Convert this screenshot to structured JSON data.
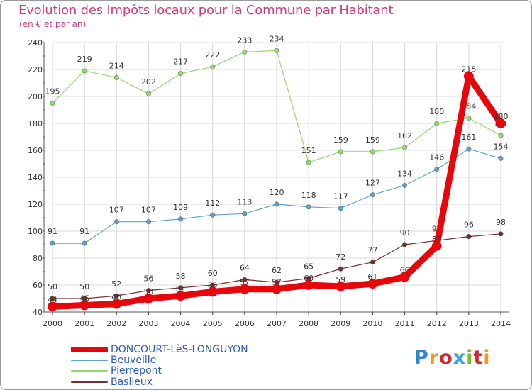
{
  "header": {
    "title": "Evolution des Impôts locaux pour la Commune par Habitant",
    "subtitle": "(en € et par an)"
  },
  "colors": {
    "title": "#d23a7a",
    "axis": "#555555",
    "grid": "#d8d8d8",
    "tick_minor": "#d23a7a"
  },
  "logo": {
    "text": "Proxiti",
    "letter_colors": [
      "#2f86c8",
      "#f29a1a",
      "#d8262e",
      "#3aa0d8",
      "#7ab82e",
      "#d8262e",
      "#f29a1a"
    ]
  },
  "chart_data": {
    "type": "line",
    "title": "Evolution des Impôts locaux pour la Commune par Habitant",
    "subtitle": "(en € et par an)",
    "categories": [
      "2000",
      "2001",
      "2002",
      "2003",
      "2004",
      "2005",
      "2006",
      "2007",
      "2008",
      "2009",
      "2010",
      "2011",
      "2012",
      "2013",
      "2014"
    ],
    "ylim": [
      40,
      240
    ],
    "yticks": [
      "40",
      "60",
      "80",
      "100",
      "120",
      "140",
      "160",
      "180",
      "200",
      "220",
      "240"
    ],
    "grid": true,
    "legend_position": "bottom-left",
    "series": [
      {
        "name": "DONCOURT-LèS-LONGUYON",
        "color": "#e8060b",
        "label_color": "#2a57c8",
        "values": [
          44,
          45,
          46,
          50,
          52,
          55,
          57,
          57,
          60,
          59,
          61,
          66,
          89,
          215,
          180
        ],
        "labels": [
          "44",
          "45",
          "46",
          "50",
          "52",
          "55",
          "57",
          "57",
          "60",
          "59",
          "61",
          "66",
          "89",
          "215",
          "180"
        ]
      },
      {
        "name": "Beuveille",
        "color": "#5ea2d5",
        "label_color": "#2a57c8",
        "values": [
          91,
          91,
          107,
          107,
          109,
          112,
          113,
          120,
          118,
          117,
          127,
          134,
          146,
          161,
          154
        ],
        "labels": [
          "91",
          "91",
          "107",
          "107",
          "109",
          "112",
          "113",
          "120",
          "118",
          "117",
          "127",
          "134",
          "146",
          "161",
          "154"
        ]
      },
      {
        "name": "Pierrepont",
        "color": "#8fdc6a",
        "label_color": "#2a57c8",
        "values": [
          195,
          219,
          214,
          202,
          217,
          222,
          233,
          234,
          151,
          159,
          159,
          162,
          180,
          184,
          171
        ],
        "labels": [
          "195",
          "219",
          "214",
          "202",
          "217",
          "222",
          "233",
          "234",
          "151",
          "159",
          "159",
          "162",
          "180",
          "184",
          "171"
        ]
      },
      {
        "name": "Baslieux",
        "color": "#7a2f2f",
        "label_color": "#7a2f2f",
        "values": [
          50,
          50,
          52,
          56,
          58,
          60,
          64,
          62,
          65,
          72,
          77,
          90,
          93,
          96,
          98
        ],
        "labels": [
          "50",
          "50",
          "52",
          "56",
          "58",
          "60",
          "64",
          "62",
          "65",
          "72",
          "77",
          "90",
          "93",
          "96",
          "98"
        ]
      }
    ]
  }
}
